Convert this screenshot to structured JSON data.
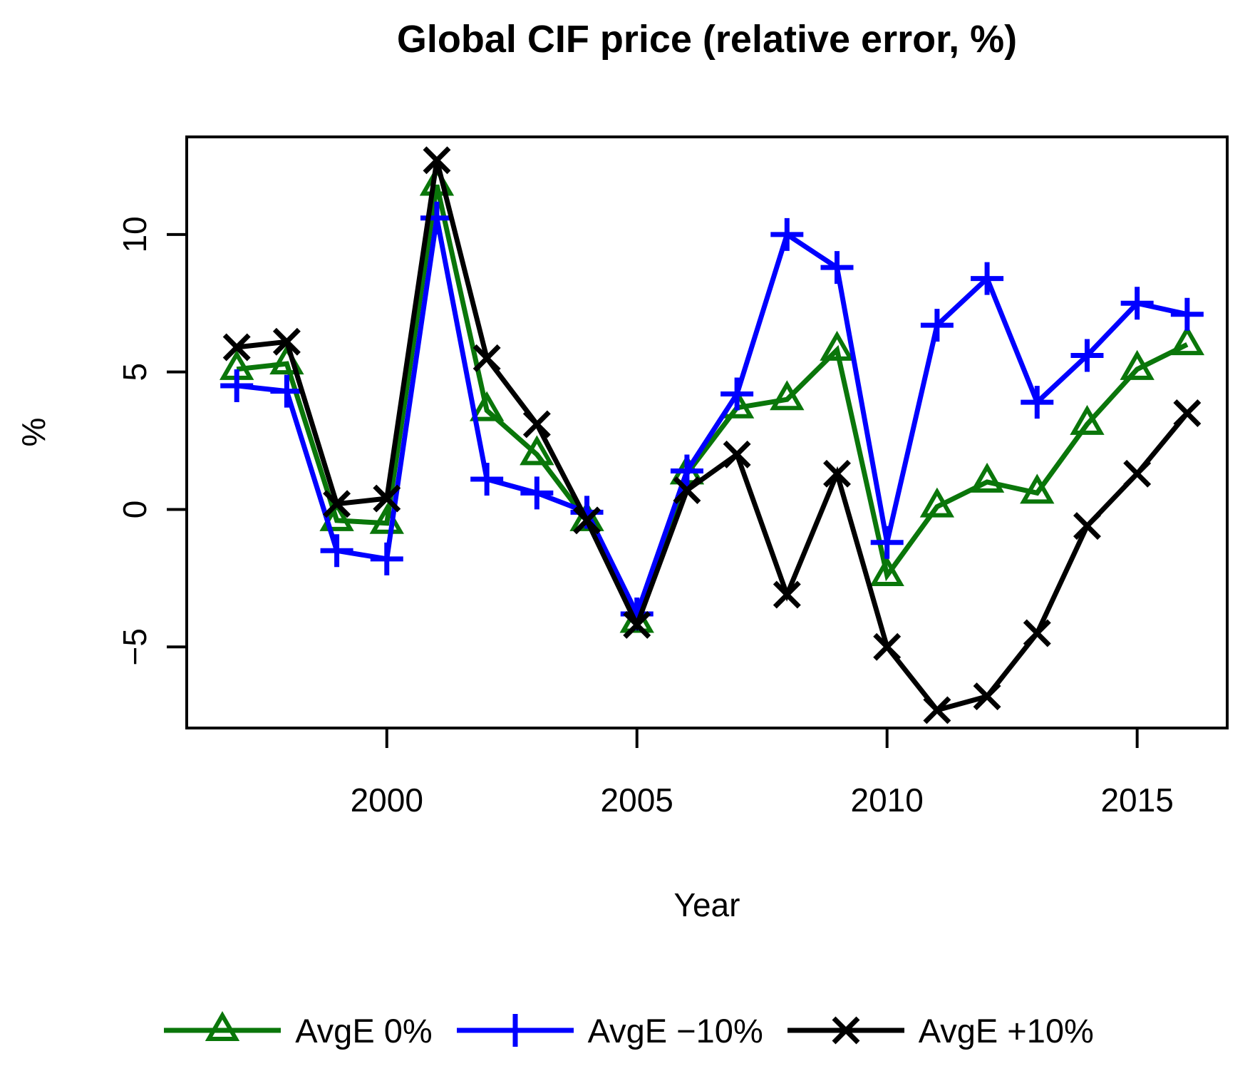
{
  "title": "Global CIF price (relative error, %)",
  "axes": {
    "xlabel": "Year",
    "ylabel": "%",
    "xlim": [
      1996.0,
      2016.8
    ],
    "ylim": [
      -7.95,
      13.55
    ],
    "x_ticks": [
      {
        "value": 2000,
        "label": "2000"
      },
      {
        "value": 2005,
        "label": "2005"
      },
      {
        "value": 2010,
        "label": "2010"
      },
      {
        "value": 2015,
        "label": "2015"
      }
    ],
    "y_ticks": [
      {
        "value": 10,
        "label": "10"
      },
      {
        "value": 5,
        "label": "5"
      },
      {
        "value": 0,
        "label": "0"
      },
      {
        "value": -5,
        "label": "−5"
      }
    ]
  },
  "chart_data": {
    "type": "line",
    "grid": false,
    "legend_position": "bottom",
    "x": [
      1997,
      1998,
      1999,
      2000,
      2001,
      2002,
      2003,
      2004,
      2005,
      2006,
      2007,
      2008,
      2009,
      2010,
      2011,
      2012,
      2013,
      2014,
      2015,
      2016
    ],
    "series": [
      {
        "name": "AvgE 0%",
        "color": "#0a760a",
        "marker": "triangle",
        "values": [
          5.1,
          5.3,
          -0.4,
          -0.5,
          11.8,
          3.6,
          2.0,
          -0.4,
          -4.1,
          1.3,
          3.7,
          4.0,
          5.8,
          -2.4,
          0.1,
          1.0,
          0.6,
          3.1,
          5.1,
          6.0
        ]
      },
      {
        "name": "AvgE −10%",
        "color": "#0000ff",
        "marker": "plus",
        "values": [
          4.5,
          4.3,
          -1.5,
          -1.8,
          10.6,
          1.1,
          0.6,
          -0.1,
          -3.8,
          1.4,
          4.2,
          10.0,
          8.8,
          -1.2,
          6.7,
          8.4,
          3.9,
          5.6,
          7.5,
          7.1
        ]
      },
      {
        "name": "AvgE +10%",
        "color": "#000000",
        "marker": "x",
        "values": [
          5.9,
          6.1,
          0.2,
          0.4,
          12.7,
          5.5,
          3.1,
          -0.4,
          -4.2,
          0.7,
          2.0,
          -3.1,
          1.3,
          -5.0,
          -7.3,
          -6.8,
          -4.5,
          -0.6,
          1.3,
          3.5
        ]
      }
    ]
  }
}
